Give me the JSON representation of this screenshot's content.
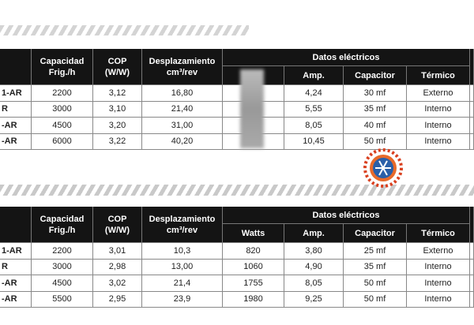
{
  "tables": [
    {
      "headers": [
        [
          "Capacidad",
          "Frig./h"
        ],
        [
          "COP",
          "(W/W)"
        ],
        [
          "Desplazamiento",
          "cm³/rev"
        ]
      ],
      "group": "Datos eléctricos",
      "subheaders": [
        "Amp.",
        "Capacitor",
        "Térmico"
      ],
      "rows": [
        [
          "1-AR",
          "2200",
          "3,12",
          "16,80",
          "4,24",
          "30 mf",
          "Externo"
        ],
        [
          "R",
          "3000",
          "3,10",
          "21,40",
          "5,55",
          "35 mf",
          "Interno"
        ],
        [
          "-AR",
          "4500",
          "3,20",
          "31,00",
          "8,05",
          "40 mf",
          "Interno"
        ],
        [
          "-AR",
          "6000",
          "3,22",
          "40,20",
          "10,45",
          "50 mf",
          "Interno"
        ]
      ]
    },
    {
      "headers": [
        [
          "Capacidad",
          "Frig./h"
        ],
        [
          "COP",
          "(W/W)"
        ],
        [
          "Desplazamiento",
          "cm³/rev"
        ]
      ],
      "group": "Datos eléctricos",
      "subheaders": [
        "Watts",
        "Amp.",
        "Capacitor",
        "Térmico"
      ],
      "rows": [
        [
          "1-AR",
          "2200",
          "3,01",
          "10,3",
          "820",
          "3,80",
          "25 mf",
          "Externo"
        ],
        [
          "R",
          "3000",
          "2,98",
          "13,00",
          "1060",
          "4,90",
          "35 mf",
          "Interno"
        ],
        [
          "-AR",
          "4500",
          "3,02",
          "21,4",
          "1755",
          "8,05",
          "50 mf",
          "Interno"
        ],
        [
          "-AR",
          "5500",
          "2,95",
          "23,9",
          "1980",
          "9,25",
          "50 mf",
          "Interno"
        ]
      ]
    }
  ]
}
